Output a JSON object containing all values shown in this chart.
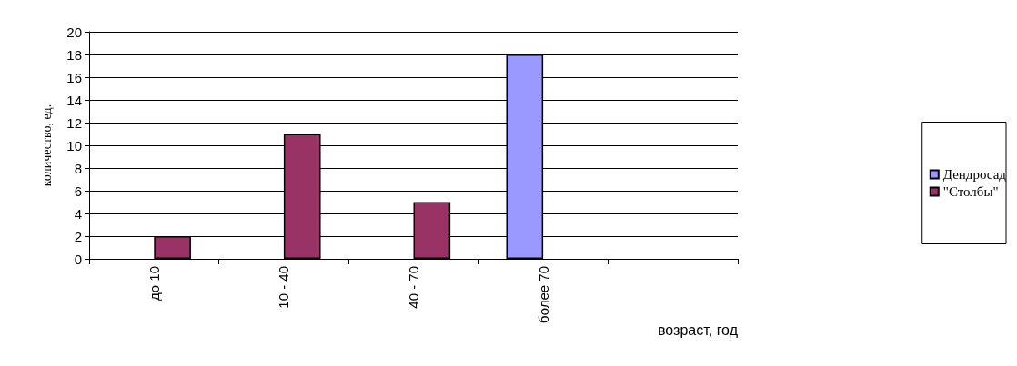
{
  "chart_data": {
    "type": "bar",
    "xlabel": "возраст, год",
    "ylabel": "количество, ед.",
    "categories": [
      "до 10",
      "10 - 40",
      "40 - 70",
      "более 70",
      null
    ],
    "series": [
      {
        "name": "Дендросад",
        "color": "#9999ff",
        "values": [
          null,
          null,
          null,
          18,
          null
        ]
      },
      {
        "name": "\"Столбы\"",
        "color": "#993366",
        "values": [
          2,
          11,
          5,
          null,
          null
        ]
      }
    ],
    "ylim": [
      0,
      20
    ],
    "yticks": [
      0,
      2,
      4,
      6,
      8,
      10,
      12,
      14,
      16,
      18,
      20
    ],
    "grid": "y",
    "legend": "right"
  }
}
